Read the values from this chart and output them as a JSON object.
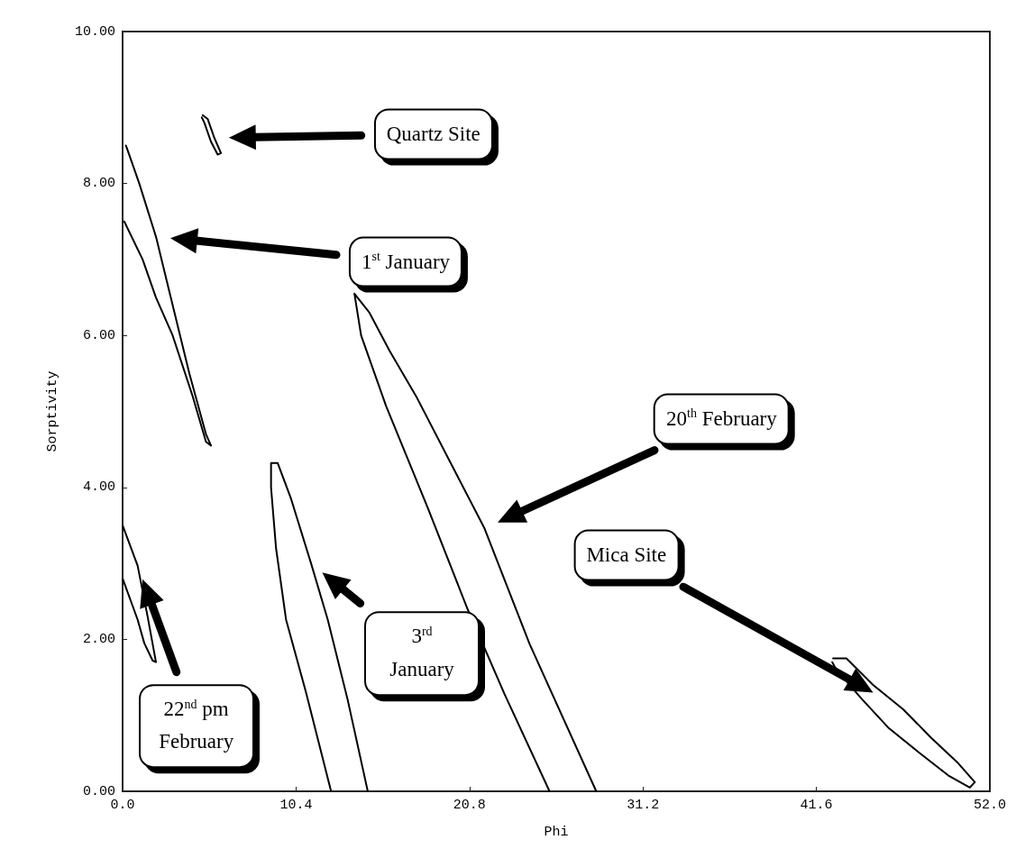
{
  "chart_data": {
    "type": "line",
    "xlabel": "Phi",
    "ylabel": "Sorptivity",
    "xlim": [
      0,
      52
    ],
    "ylim": [
      0,
      10
    ],
    "xticks": [
      {
        "value": 0,
        "label": "0.0"
      },
      10.4,
      20.8,
      31.2,
      41.6,
      {
        "value": 52,
        "label": "52.0"
      }
    ],
    "yticks": [
      {
        "value": 0,
        "label": "0.00"
      },
      {
        "value": 2,
        "label": "2.00"
      },
      {
        "value": 4,
        "label": "4.00"
      },
      {
        "value": 6,
        "label": "6.00"
      },
      {
        "value": 8,
        "label": "8.00"
      },
      {
        "value": 10,
        "label": "10.00"
      }
    ],
    "grid": false,
    "marker": "none",
    "line_style": "solid",
    "series": [
      {
        "color": "#000000",
        "x": [
          4.8,
          5.1,
          5.5,
          5.9,
          5.7,
          5.3,
          4.9,
          4.75
        ],
        "values": [
          8.9,
          8.85,
          8.6,
          8.4,
          8.38,
          8.55,
          8.8,
          8.87
        ]
      },
      {
        "color": "#000000",
        "x": [
          0.2,
          1.0,
          2.0,
          3.0,
          4.0,
          5.0,
          5.3,
          5.0,
          4.2,
          3.0,
          2.0,
          1.2,
          0.1
        ],
        "values": [
          8.5,
          8.0,
          7.3,
          6.4,
          5.5,
          4.7,
          4.55,
          4.6,
          5.2,
          6.0,
          6.5,
          7.0,
          7.5
        ]
      },
      {
        "color": "#000000",
        "x": [
          0,
          0.9,
          1.5,
          2.0,
          1.8,
          1.3,
          0.9,
          0
        ],
        "values": [
          3.5,
          2.97,
          2.3,
          1.7,
          1.72,
          1.95,
          2.26,
          2.8
        ]
      },
      {
        "color": "#000000",
        "x": [
          12.5,
          11.0,
          9.8,
          9.2,
          8.9,
          8.9,
          9.3,
          10.1,
          11.3,
          12.3,
          13.5,
          14.7
        ],
        "values": [
          0,
          1.3,
          2.26,
          3.2,
          4.0,
          4.32,
          4.32,
          3.85,
          3.0,
          2.26,
          1.2,
          0
        ]
      },
      {
        "color": "#000000",
        "x": [
          25.6,
          22.9,
          20.7,
          18.3,
          15.8,
          14.3,
          13.9,
          14.8,
          16.0,
          17.6,
          21.7,
          24.4,
          28.4
        ],
        "values": [
          0,
          1.28,
          2.39,
          3.73,
          5.07,
          6.0,
          6.55,
          6.3,
          5.8,
          5.2,
          3.46,
          1.94,
          0
        ]
      },
      {
        "color": "#000000",
        "x": [
          42.6,
          43.4,
          45.0,
          46.8,
          48.5,
          50.1,
          51.1,
          50.8,
          49.5,
          47.7,
          45.9,
          44.3,
          42.8,
          42.55
        ],
        "values": [
          1.75,
          1.75,
          1.4,
          1.08,
          0.7,
          0.37,
          0.12,
          0.05,
          0.21,
          0.52,
          0.84,
          1.22,
          1.6,
          1.7
        ]
      }
    ],
    "annotations": [
      "Quartz Site",
      "1$^{st}$ January",
      "20$^{th}$ February",
      "Mica Site",
      "3$^{rd}$ January",
      "22$^{nd}$ pm February"
    ]
  }
}
